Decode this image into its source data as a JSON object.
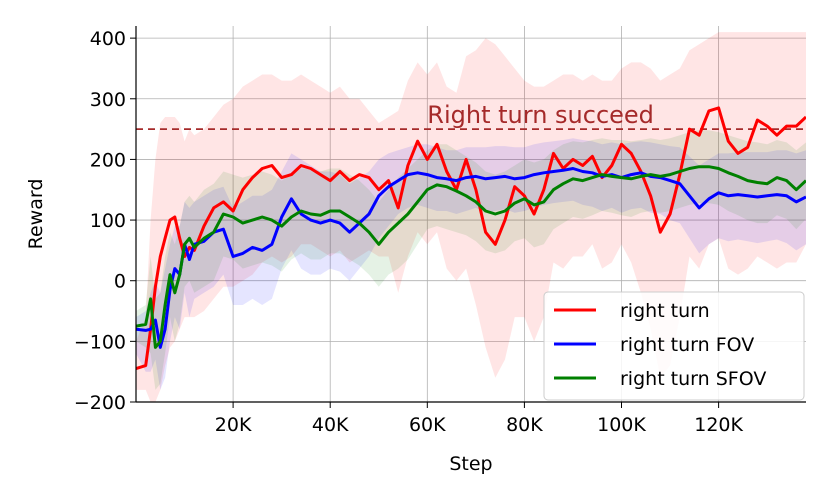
{
  "chart_data": {
    "type": "line",
    "xlabel": "Step",
    "ylabel": "Reward",
    "xlim": [
      0,
      138000
    ],
    "ylim": [
      -200,
      420
    ],
    "grid": true,
    "legend_position": "lower right",
    "x_ticks": [
      {
        "value": 20000,
        "label": "20K"
      },
      {
        "value": 40000,
        "label": "40K"
      },
      {
        "value": 60000,
        "label": "60K"
      },
      {
        "value": 80000,
        "label": "80K"
      },
      {
        "value": 100000,
        "label": "100K"
      },
      {
        "value": 120000,
        "label": "120K"
      }
    ],
    "y_ticks": [
      {
        "value": -200,
        "label": "−200"
      },
      {
        "value": -100,
        "label": "−100"
      },
      {
        "value": 0,
        "label": "0"
      },
      {
        "value": 100,
        "label": "100"
      },
      {
        "value": 200,
        "label": "200"
      },
      {
        "value": 300,
        "label": "300"
      },
      {
        "value": 400,
        "label": "400"
      }
    ],
    "annotations": [
      {
        "type": "hline",
        "y": 250,
        "color": "#a52a2a",
        "style": "dashed",
        "label": "Right turn succeed",
        "label_x": 60000
      }
    ],
    "series": [
      {
        "name": "right turn",
        "color": "#ff0000",
        "band_color": "#ff0000",
        "x": [
          0,
          2000,
          3000,
          4000,
          5000,
          6000,
          7000,
          8000,
          9000,
          10000,
          11000,
          12000,
          14000,
          16000,
          18000,
          20000,
          22000,
          24000,
          26000,
          28000,
          30000,
          32000,
          34000,
          36000,
          38000,
          40000,
          42000,
          44000,
          46000,
          48000,
          50000,
          52000,
          54000,
          56000,
          58000,
          60000,
          62000,
          64000,
          66000,
          68000,
          70000,
          72000,
          74000,
          76000,
          78000,
          80000,
          82000,
          84000,
          86000,
          88000,
          90000,
          92000,
          94000,
          96000,
          98000,
          100000,
          102000,
          104000,
          106000,
          108000,
          110000,
          112000,
          114000,
          116000,
          118000,
          120000,
          122000,
          124000,
          126000,
          128000,
          130000,
          132000,
          134000,
          136000,
          138000
        ],
        "y": [
          -145,
          -140,
          -80,
          -10,
          40,
          70,
          100,
          105,
          70,
          40,
          55,
          50,
          90,
          120,
          130,
          115,
          150,
          170,
          185,
          190,
          170,
          175,
          190,
          185,
          175,
          165,
          180,
          165,
          175,
          170,
          150,
          165,
          120,
          190,
          230,
          200,
          225,
          180,
          150,
          200,
          150,
          80,
          60,
          100,
          155,
          140,
          110,
          150,
          210,
          185,
          200,
          190,
          205,
          170,
          190,
          225,
          210,
          180,
          140,
          80,
          110,
          175,
          250,
          240,
          280,
          285,
          230,
          210,
          220,
          265,
          255,
          240,
          255,
          255,
          270
        ],
        "upper": [
          -100,
          -60,
          100,
          200,
          260,
          270,
          270,
          270,
          260,
          230,
          250,
          240,
          250,
          270,
          290,
          300,
          320,
          330,
          340,
          340,
          330,
          330,
          340,
          330,
          320,
          310,
          320,
          300,
          300,
          280,
          260,
          270,
          280,
          330,
          360,
          340,
          360,
          320,
          310,
          370,
          380,
          400,
          390,
          370,
          350,
          330,
          320,
          320,
          330,
          340,
          340,
          330,
          340,
          330,
          330,
          350,
          360,
          360,
          350,
          330,
          340,
          350,
          380,
          390,
          400,
          410,
          410,
          410,
          410,
          410,
          410,
          410,
          410,
          410,
          410
        ],
        "lower": [
          -180,
          -180,
          -200,
          -200,
          -180,
          -140,
          -110,
          -100,
          -80,
          -60,
          -60,
          -60,
          -50,
          -30,
          -10,
          -10,
          0,
          10,
          30,
          40,
          30,
          40,
          60,
          60,
          50,
          40,
          50,
          30,
          40,
          50,
          40,
          40,
          -20,
          40,
          80,
          60,
          80,
          20,
          0,
          20,
          -40,
          -110,
          -160,
          -130,
          -60,
          -60,
          -100,
          -60,
          30,
          20,
          40,
          40,
          60,
          20,
          30,
          60,
          30,
          -20,
          -80,
          -160,
          -140,
          -60,
          40,
          20,
          60,
          70,
          20,
          10,
          20,
          40,
          30,
          20,
          30,
          30,
          60
        ]
      },
      {
        "name": "right turn FOV",
        "color": "#0000ff",
        "band_color": "#0000ff",
        "x": [
          0,
          2000,
          3000,
          4000,
          5000,
          6000,
          7000,
          8000,
          9000,
          10000,
          11000,
          12000,
          14000,
          16000,
          18000,
          20000,
          22000,
          24000,
          26000,
          28000,
          30000,
          32000,
          34000,
          36000,
          38000,
          40000,
          42000,
          44000,
          46000,
          48000,
          50000,
          52000,
          54000,
          56000,
          58000,
          60000,
          62000,
          64000,
          66000,
          68000,
          70000,
          72000,
          74000,
          76000,
          78000,
          80000,
          82000,
          84000,
          86000,
          88000,
          90000,
          92000,
          94000,
          96000,
          98000,
          100000,
          102000,
          104000,
          106000,
          108000,
          110000,
          112000,
          114000,
          116000,
          118000,
          120000,
          122000,
          124000,
          126000,
          128000,
          130000,
          132000,
          134000,
          136000,
          138000
        ],
        "y": [
          -80,
          -82,
          -80,
          -65,
          -110,
          -80,
          -15,
          20,
          10,
          60,
          35,
          60,
          65,
          80,
          85,
          40,
          45,
          55,
          50,
          60,
          105,
          135,
          110,
          100,
          95,
          100,
          95,
          80,
          95,
          110,
          140,
          155,
          165,
          175,
          178,
          175,
          170,
          168,
          165,
          170,
          172,
          168,
          170,
          172,
          168,
          170,
          175,
          178,
          180,
          182,
          185,
          180,
          178,
          172,
          175,
          170,
          175,
          178,
          172,
          170,
          165,
          160,
          140,
          120,
          135,
          145,
          140,
          142,
          140,
          138,
          140,
          142,
          140,
          130,
          138
        ],
        "upper": [
          -60,
          -50,
          -20,
          0,
          -20,
          20,
          60,
          90,
          90,
          130,
          120,
          130,
          140,
          150,
          155,
          120,
          130,
          140,
          140,
          150,
          180,
          210,
          200,
          190,
          180,
          180,
          175,
          160,
          170,
          180,
          200,
          210,
          215,
          220,
          225,
          225,
          220,
          215,
          215,
          220,
          220,
          220,
          222,
          222,
          220,
          220,
          225,
          228,
          230,
          232,
          235,
          232,
          230,
          225,
          228,
          225,
          228,
          230,
          228,
          225,
          222,
          220,
          205,
          190,
          200,
          210,
          210,
          212,
          212,
          212,
          212,
          215,
          215,
          210,
          215
        ],
        "lower": [
          -120,
          -150,
          -150,
          -130,
          -180,
          -160,
          -100,
          -60,
          -80,
          -20,
          -60,
          -30,
          -20,
          -10,
          10,
          -40,
          -40,
          -30,
          -40,
          -30,
          20,
          50,
          20,
          10,
          10,
          20,
          15,
          0,
          20,
          40,
          70,
          90,
          110,
          120,
          125,
          120,
          115,
          115,
          110,
          115,
          120,
          112,
          115,
          118,
          112,
          115,
          120,
          125,
          128,
          130,
          132,
          125,
          122,
          115,
          120,
          112,
          118,
          120,
          112,
          110,
          100,
          95,
          70,
          45,
          60,
          70,
          65,
          68,
          65,
          62,
          65,
          68,
          62,
          50,
          60
        ]
      },
      {
        "name": "right turn SFOV",
        "color": "#008000",
        "band_color": "#008000",
        "x": [
          0,
          2000,
          3000,
          4000,
          5000,
          6000,
          7000,
          8000,
          9000,
          10000,
          11000,
          12000,
          14000,
          16000,
          18000,
          20000,
          22000,
          24000,
          26000,
          28000,
          30000,
          32000,
          34000,
          36000,
          38000,
          40000,
          42000,
          44000,
          46000,
          48000,
          50000,
          52000,
          54000,
          56000,
          58000,
          60000,
          62000,
          64000,
          66000,
          68000,
          70000,
          72000,
          74000,
          76000,
          78000,
          80000,
          82000,
          84000,
          86000,
          88000,
          90000,
          92000,
          94000,
          96000,
          98000,
          100000,
          102000,
          104000,
          106000,
          108000,
          110000,
          112000,
          114000,
          116000,
          118000,
          120000,
          122000,
          124000,
          126000,
          128000,
          130000,
          132000,
          134000,
          136000,
          138000
        ],
        "y": [
          -75,
          -72,
          -30,
          -110,
          -100,
          -40,
          10,
          -20,
          10,
          60,
          70,
          55,
          70,
          80,
          110,
          105,
          95,
          100,
          105,
          100,
          90,
          105,
          115,
          110,
          108,
          115,
          115,
          105,
          95,
          80,
          60,
          80,
          95,
          110,
          130,
          150,
          158,
          155,
          148,
          140,
          130,
          115,
          110,
          115,
          128,
          135,
          125,
          130,
          150,
          160,
          168,
          165,
          170,
          175,
          172,
          170,
          168,
          172,
          175,
          172,
          175,
          180,
          185,
          188,
          188,
          185,
          178,
          172,
          165,
          162,
          160,
          170,
          165,
          150,
          165
        ],
        "upper": [
          -50,
          -40,
          40,
          -30,
          -20,
          40,
          80,
          60,
          90,
          130,
          140,
          130,
          150,
          160,
          180,
          175,
          170,
          175,
          180,
          175,
          165,
          175,
          185,
          185,
          180,
          185,
          185,
          175,
          165,
          150,
          130,
          150,
          170,
          185,
          200,
          215,
          225,
          225,
          215,
          205,
          195,
          180,
          175,
          180,
          190,
          200,
          195,
          200,
          215,
          225,
          230,
          228,
          232,
          235,
          232,
          232,
          230,
          232,
          235,
          232,
          235,
          240,
          245,
          248,
          248,
          245,
          240,
          235,
          230,
          228,
          225,
          232,
          228,
          215,
          228
        ],
        "lower": [
          -100,
          -110,
          -120,
          -180,
          -170,
          -120,
          -60,
          -100,
          -70,
          -10,
          0,
          -20,
          -10,
          0,
          40,
          35,
          20,
          25,
          30,
          25,
          15,
          35,
          45,
          35,
          35,
          45,
          45,
          35,
          25,
          10,
          -10,
          10,
          20,
          35,
          60,
          85,
          90,
          85,
          80,
          75,
          65,
          50,
          45,
          50,
          65,
          70,
          55,
          60,
          85,
          95,
          105,
          102,
          108,
          115,
          112,
          108,
          105,
          112,
          115,
          112,
          115,
          120,
          125,
          128,
          128,
          125,
          115,
          108,
          100,
          95,
          95,
          108,
          102,
          85,
          102
        ]
      }
    ]
  }
}
